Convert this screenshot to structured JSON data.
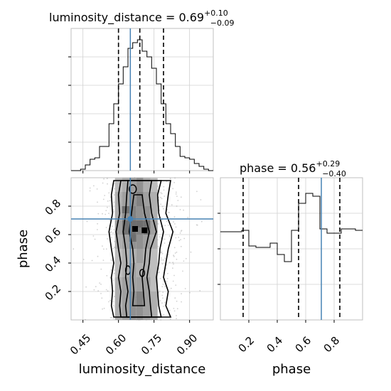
{
  "chart_data": [
    {
      "type": "histogram",
      "panel": "luminosity_distance marginal",
      "title": {
        "param": "luminosity_distance",
        "value": "0.69",
        "plus": "+0.10",
        "minus": "−0.09"
      },
      "xlim": [
        0.4,
        1.0
      ],
      "grid": true,
      "truth": 0.65,
      "quantiles": [
        0.6,
        0.69,
        0.79
      ],
      "bin_edges": [
        0.4,
        0.42,
        0.44,
        0.46,
        0.48,
        0.5,
        0.52,
        0.54,
        0.56,
        0.58,
        0.6,
        0.62,
        0.64,
        0.66,
        0.68,
        0.7,
        0.72,
        0.74,
        0.76,
        0.78,
        0.8,
        0.82,
        0.84,
        0.86,
        0.88,
        0.9,
        0.92,
        0.94,
        0.96,
        0.98,
        1.0
      ],
      "counts": [
        0,
        0,
        1,
        4,
        8,
        9,
        17,
        17,
        33,
        47,
        61,
        73,
        86,
        90,
        92,
        84,
        80,
        72,
        61,
        47,
        33,
        26,
        17,
        10,
        9,
        8,
        5,
        3,
        1,
        0
      ]
    },
    {
      "type": "histogram",
      "panel": "phase marginal",
      "title": {
        "param": "phase",
        "value": "0.56",
        "plus": "+0.29",
        "minus": "−0.40"
      },
      "xlim": [
        0.0,
        1.0
      ],
      "xticks": [
        "0.2",
        "0.4",
        "0.6",
        "0.8"
      ],
      "grid": true,
      "truth": 0.71,
      "quantiles": [
        0.16,
        0.55,
        0.84
      ],
      "bin_edges": [
        0.0,
        0.05,
        0.1,
        0.15,
        0.2,
        0.25,
        0.3,
        0.35,
        0.4,
        0.45,
        0.5,
        0.55,
        0.6,
        0.65,
        0.7,
        0.75,
        0.8,
        0.85,
        0.9,
        0.95,
        1.0
      ],
      "counts": [
        62,
        62,
        62,
        63,
        52,
        51,
        51,
        54,
        46,
        41,
        63,
        82,
        89,
        87,
        64,
        61,
        61,
        64,
        64,
        63
      ]
    },
    {
      "type": "heatmap",
      "panel": "2D joint luminosity_distance vs phase",
      "xlim": [
        0.4,
        1.0
      ],
      "ylim": [
        0.0,
        1.0
      ],
      "xticks": [
        "0.45",
        "0.60",
        "0.75",
        "0.90"
      ],
      "yticks": [
        "0.2",
        "0.4",
        "0.6",
        "0.8"
      ],
      "xlabel": "luminosity_distance",
      "ylabel": "phase",
      "grid": true,
      "truth": {
        "x": 0.65,
        "y": 0.71
      },
      "x_centers": [
        0.6,
        0.63,
        0.66,
        0.69,
        0.72,
        0.75
      ],
      "y_centers": [
        0.05,
        0.15,
        0.25,
        0.35,
        0.45,
        0.55,
        0.65,
        0.75,
        0.85,
        0.95
      ],
      "density": [
        [
          0.5,
          0.6,
          0.7,
          0.7,
          0.6,
          0.5
        ],
        [
          0.5,
          0.6,
          0.7,
          0.8,
          0.6,
          0.5
        ],
        [
          0.5,
          0.6,
          0.6,
          0.6,
          0.6,
          0.4
        ],
        [
          0.4,
          0.5,
          0.6,
          0.5,
          0.5,
          0.4
        ],
        [
          0.4,
          0.5,
          0.5,
          0.6,
          0.5,
          0.4
        ],
        [
          0.5,
          0.6,
          0.7,
          0.7,
          0.6,
          0.5
        ],
        [
          0.6,
          0.9,
          0.9,
          0.8,
          0.9,
          0.6
        ],
        [
          0.5,
          0.7,
          0.8,
          0.7,
          0.7,
          0.5
        ],
        [
          0.5,
          0.6,
          0.7,
          0.8,
          0.6,
          0.5
        ],
        [
          0.4,
          0.5,
          0.6,
          0.7,
          0.5,
          0.4
        ]
      ]
    }
  ]
}
